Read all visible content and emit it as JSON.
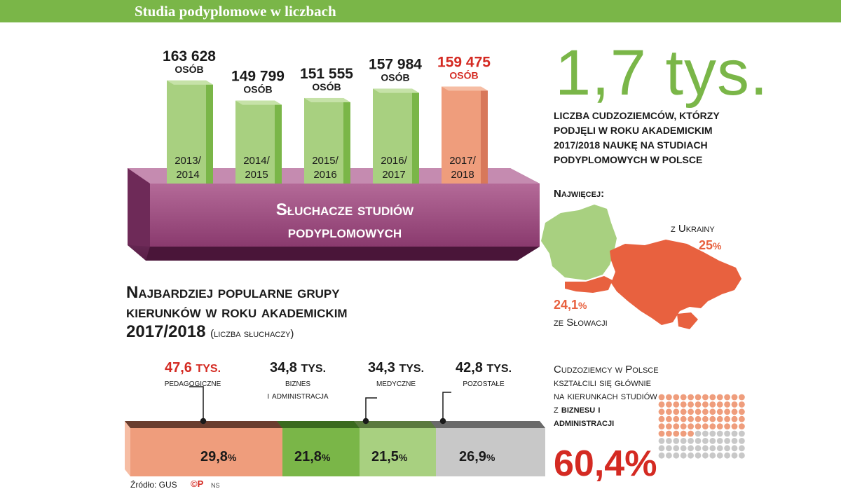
{
  "header": {
    "title": "Studia podyplomowe w liczbach"
  },
  "chart_data": [
    {
      "type": "bar",
      "title": "Słuchacze studiów podyplomowych",
      "categories": [
        "2013/ 2014",
        "2014/ 2015",
        "2015/ 2016",
        "2016/ 2017",
        "2017/ 2018"
      ],
      "values": [
        163628,
        149799,
        151555,
        157984,
        159475
      ],
      "value_labels": [
        "163 628",
        "149 799",
        "151 555",
        "157 984",
        "159 475"
      ],
      "unit": "OSÓB",
      "highlight_index": 4
    },
    {
      "type": "bar",
      "title": "Najbardziej popularne grupy kierunków w roku akademickim 2017/2018",
      "subtitle": "(liczba słuchaczy)",
      "categories": [
        "pedagogiczne",
        "biznes i administracja",
        "medyczne",
        "pozostałe"
      ],
      "values": [
        47.6,
        34.8,
        34.3,
        42.8
      ],
      "value_labels": [
        "47,6",
        "34,8",
        "34,3",
        "42,8"
      ],
      "unit": "TYS.",
      "shares": [
        29.8,
        21.8,
        21.5,
        26.9
      ],
      "share_labels": [
        "29,8",
        "21,8",
        "21,5",
        "26,9"
      ]
    }
  ],
  "book": {
    "line1": "Słuchacze studiów",
    "line2": "podyplomowych"
  },
  "popular": {
    "title_line1": "Najbardziej popularne grupy",
    "title_line2": "kierunków w roku akademickim",
    "title_line3": "2017/2018",
    "subtitle": "(liczba słuchaczy)",
    "unit": "TYS.",
    "pct_sign": "%",
    "cats": [
      {
        "value": "47,6",
        "name1": "pedagogiczne",
        "name2": ""
      },
      {
        "value": "34,8",
        "name1": "biznes",
        "name2": "i administracja"
      },
      {
        "value": "34,3",
        "name1": "medyczne",
        "name2": ""
      },
      {
        "value": "42,8",
        "name1": "pozostałe",
        "name2": ""
      }
    ]
  },
  "foreigners": {
    "big_number": "1,7 tys.",
    "desc": "liczba cudzoziemców, którzy podjęli w roku akademickim 2017/2018 naukę na studiach podyplomowych w Polsce",
    "most_label": "Najwięcej:",
    "ukraine_label": "z Ukrainy",
    "ukraine_pct": "25",
    "slovakia_pct": "24,1",
    "slovakia_label": "ze Słowacji",
    "pct_sign": "%"
  },
  "education": {
    "desc_1": "Cudzoziemcy w Polsce kształcili się głównie na kierunkach studiów",
    "desc_2": "z",
    "desc_bold": "biznesu i administracji",
    "pct": "60,4%"
  },
  "source": {
    "label": "Źródło: GUS",
    "logo": "©P",
    "initials": "NS"
  },
  "colors": {
    "green": "#7ab648",
    "light_green": "#a8d080",
    "salmon": "#ef9d7c",
    "red": "#d42a22",
    "orange": "#e8613f",
    "book": "#8a3a6e",
    "grey": "#c8c8c8"
  }
}
